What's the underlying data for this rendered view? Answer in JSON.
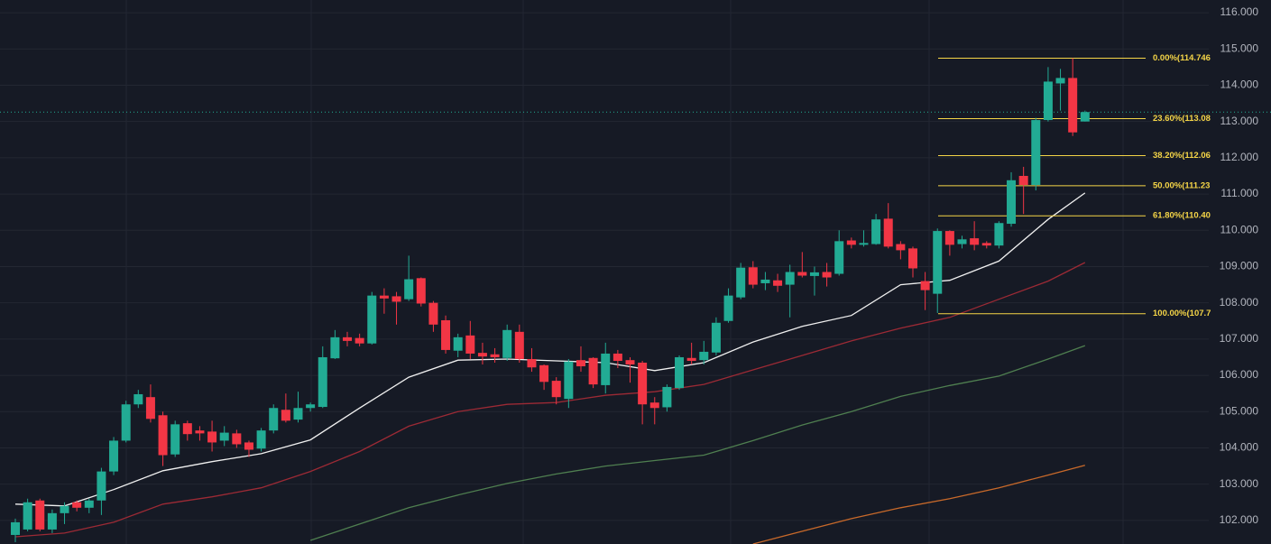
{
  "chart_data": {
    "type": "candlestick",
    "ylim": [
      101.35,
      116.35
    ],
    "yticks": [
      {
        "value": 102,
        "label": "102.000"
      },
      {
        "value": 103,
        "label": "103.000"
      },
      {
        "value": 104,
        "label": "104.000"
      },
      {
        "value": 105,
        "label": "105.000"
      },
      {
        "value": 106,
        "label": "106.000"
      },
      {
        "value": 107,
        "label": "107.000"
      },
      {
        "value": 108,
        "label": "108.000"
      },
      {
        "value": 109,
        "label": "109.000"
      },
      {
        "value": 110,
        "label": "110.000"
      },
      {
        "value": 111,
        "label": "111.000"
      },
      {
        "value": 112,
        "label": "112.000"
      },
      {
        "value": 113,
        "label": "113.000"
      },
      {
        "value": 114,
        "label": "114.000"
      },
      {
        "value": 115,
        "label": "115.000"
      },
      {
        "value": 116,
        "label": "116.000"
      }
    ],
    "grid": true,
    "up_color": "#22ab94",
    "down_color": "#f23645",
    "open": [
      101.6,
      101.75,
      102.55,
      101.75,
      102.2,
      102.5,
      102.35,
      102.55,
      103.35,
      104.2,
      105.2,
      105.4,
      104.9,
      103.82,
      104.68,
      104.48,
      104.45,
      104.2,
      104.4,
      104.15,
      103.98,
      104.48,
      105.05,
      104.78,
      105.1,
      105.13,
      106.47,
      107.05,
      107.03,
      106.88,
      108.2,
      108.18,
      108.1,
      108.68,
      108.0,
      107.52,
      106.68,
      107.1,
      106.62,
      106.58,
      106.48,
      107.2,
      106.45,
      106.28,
      105.85,
      105.35,
      106.42,
      106.48,
      105.73,
      106.6,
      106.42,
      106.35,
      105.25,
      105.12,
      105.65,
      106.48,
      106.42,
      106.63,
      107.5,
      108.15,
      108.98,
      108.54,
      108.62,
      108.5,
      108.85,
      108.74,
      108.85,
      108.8,
      109.72,
      109.6,
      109.62,
      110.32,
      109.62,
      109.5,
      108.6,
      108.25,
      109.98,
      109.62,
      109.78,
      109.65,
      109.58,
      110.18,
      111.5,
      111.25,
      113.04,
      114.05,
      114.2,
      113.0
    ],
    "high": [
      102.05,
      102.6,
      102.6,
      102.3,
      102.5,
      102.55,
      102.6,
      103.45,
      104.3,
      105.3,
      105.6,
      105.75,
      105.0,
      104.75,
      104.75,
      104.6,
      104.75,
      104.6,
      104.5,
      104.2,
      104.55,
      105.2,
      105.5,
      105.55,
      105.25,
      106.8,
      107.25,
      107.2,
      107.15,
      108.3,
      108.4,
      108.3,
      109.3,
      108.7,
      108.05,
      107.65,
      107.15,
      107.5,
      106.9,
      106.75,
      107.4,
      107.4,
      106.75,
      106.3,
      105.95,
      106.45,
      106.8,
      106.5,
      106.9,
      106.7,
      106.5,
      106.4,
      105.4,
      105.75,
      106.55,
      106.9,
      106.95,
      107.6,
      108.4,
      109.1,
      109.15,
      108.85,
      108.8,
      109.05,
      109.4,
      109.0,
      109.1,
      110.0,
      109.8,
      110.0,
      110.45,
      110.75,
      109.7,
      109.55,
      108.85,
      110.05,
      110.0,
      109.85,
      110.25,
      109.7,
      110.25,
      111.6,
      111.75,
      113.1,
      114.5,
      114.45,
      114.746,
      113.3
    ],
    "low": [
      101.4,
      101.7,
      101.7,
      101.65,
      101.9,
      102.25,
      102.2,
      102.15,
      103.25,
      104.15,
      105.1,
      104.7,
      103.5,
      103.75,
      104.2,
      104.2,
      103.9,
      104.05,
      104.0,
      103.75,
      103.9,
      104.4,
      104.7,
      104.7,
      105.0,
      105.1,
      106.45,
      106.8,
      106.8,
      106.85,
      107.7,
      107.4,
      108.05,
      107.9,
      107.2,
      106.6,
      106.5,
      106.45,
      106.3,
      106.35,
      106.4,
      106.35,
      106.1,
      105.6,
      105.2,
      105.1,
      106.1,
      105.65,
      105.5,
      106.2,
      105.8,
      104.65,
      104.65,
      105.0,
      105.6,
      106.3,
      106.3,
      106.55,
      107.45,
      108.1,
      108.4,
      108.35,
      108.3,
      107.6,
      108.7,
      108.2,
      108.45,
      108.75,
      109.5,
      109.55,
      109.6,
      109.5,
      109.2,
      108.7,
      107.8,
      107.72,
      109.3,
      109.5,
      109.45,
      109.5,
      109.5,
      110.1,
      110.45,
      111.1,
      113.0,
      113.3,
      112.6,
      113.0
    ],
    "close": [
      101.95,
      102.5,
      101.75,
      102.2,
      102.4,
      102.35,
      102.55,
      103.35,
      104.2,
      105.2,
      105.48,
      104.8,
      103.8,
      104.65,
      104.38,
      104.4,
      104.15,
      104.42,
      104.1,
      103.95,
      104.48,
      105.1,
      104.75,
      105.1,
      105.2,
      106.5,
      107.05,
      106.95,
      106.88,
      108.2,
      108.12,
      108.03,
      108.65,
      107.98,
      107.4,
      106.7,
      107.05,
      106.6,
      106.52,
      106.5,
      107.25,
      106.45,
      106.22,
      105.82,
      105.4,
      106.38,
      106.25,
      105.75,
      106.6,
      106.4,
      106.3,
      105.2,
      105.1,
      105.68,
      106.5,
      106.4,
      106.65,
      107.45,
      108.2,
      108.97,
      108.5,
      108.64,
      108.47,
      108.85,
      108.75,
      108.84,
      108.7,
      109.7,
      109.6,
      109.65,
      110.3,
      109.55,
      109.45,
      108.95,
      108.35,
      109.98,
      109.6,
      109.75,
      109.6,
      109.58,
      110.2,
      111.38,
      111.25,
      113.04,
      114.1,
      114.2,
      112.7,
      113.26
    ],
    "series": [
      {
        "type": "line",
        "color": "#f0f0f0",
        "x": [
          0,
          4,
          8,
          12,
          16,
          20,
          24,
          28,
          32,
          36,
          40,
          44,
          48,
          52,
          56,
          60,
          64,
          68,
          72,
          76,
          80,
          84,
          87
        ],
        "values": [
          102.45,
          102.4,
          102.85,
          103.37,
          103.62,
          103.84,
          104.22,
          105.1,
          105.95,
          106.42,
          106.45,
          106.4,
          106.35,
          106.13,
          106.35,
          106.92,
          107.35,
          107.65,
          108.5,
          108.62,
          109.15,
          110.3,
          111.03
        ]
      },
      {
        "type": "line",
        "color": "#9c2a35",
        "x": [
          0,
          4,
          8,
          12,
          16,
          20,
          24,
          28,
          32,
          36,
          40,
          44,
          48,
          52,
          56,
          60,
          64,
          68,
          72,
          76,
          80,
          84,
          87
        ],
        "values": [
          101.55,
          101.65,
          101.95,
          102.45,
          102.65,
          102.9,
          103.35,
          103.9,
          104.6,
          105.0,
          105.2,
          105.25,
          105.45,
          105.55,
          105.75,
          106.15,
          106.55,
          106.95,
          107.3,
          107.6,
          108.1,
          108.6,
          109.11
        ]
      },
      {
        "type": "line",
        "color": "#4f7f50",
        "x": [
          24,
          28,
          32,
          36,
          40,
          44,
          48,
          52,
          56,
          60,
          64,
          68,
          72,
          76,
          80,
          84,
          87
        ],
        "values": [
          101.45,
          101.9,
          102.35,
          102.7,
          103.02,
          103.28,
          103.5,
          103.65,
          103.8,
          104.2,
          104.63,
          105.0,
          105.42,
          105.72,
          105.98,
          106.45,
          106.82
        ]
      },
      {
        "type": "line",
        "color": "#c8692a",
        "x": [
          60,
          64,
          68,
          72,
          76,
          80,
          84,
          87
        ],
        "values": [
          101.35,
          101.7,
          102.05,
          102.35,
          102.6,
          102.9,
          103.25,
          103.52
        ]
      }
    ],
    "fib_color": "#f5d547",
    "fib_levels": [
      {
        "value": 114.746,
        "label": "0.00%(114.746"
      },
      {
        "value": 113.08,
        "label": "23.60%(113.08"
      },
      {
        "value": 112.06,
        "label": "38.20%(112.06"
      },
      {
        "value": 111.23,
        "label": "50.00%(111.23"
      },
      {
        "value": 110.4,
        "label": "61.80%(110.40"
      },
      {
        "value": 107.7,
        "label": "100.00%(107.7"
      }
    ],
    "last_price": 113.26
  }
}
